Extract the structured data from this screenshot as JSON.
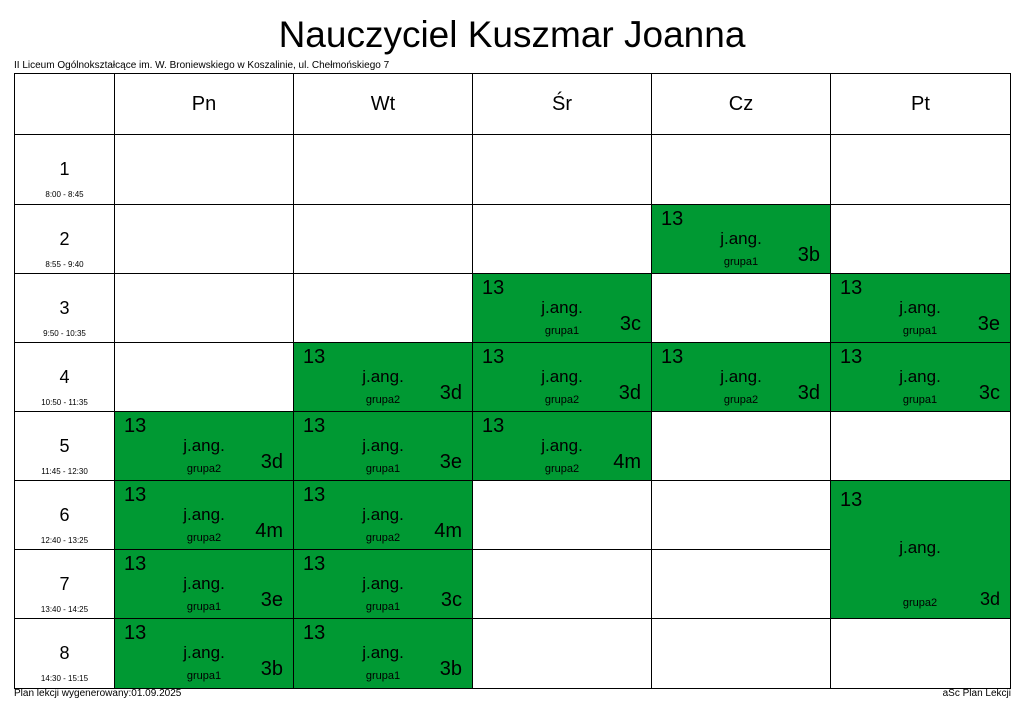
{
  "title": "Nauczyciel Kuszmar Joanna",
  "subtitle": "II Liceum Ogólnokształcące im. W. Broniewskiego w Koszalinie, ul. Chełmońskiego 7",
  "days": [
    "Pn",
    "Wt",
    "Śr",
    "Cz",
    "Pt"
  ],
  "rows": [
    {
      "number": "1",
      "time": "8:00 - 8:45",
      "cells": [
        null,
        null,
        null,
        null,
        null
      ]
    },
    {
      "number": "2",
      "time": "8:55 - 9:40",
      "cells": [
        null,
        null,
        null,
        {
          "room": "13",
          "subject": "j.ang.",
          "group": "grupa1",
          "class": "3b"
        },
        null
      ]
    },
    {
      "number": "3",
      "time": "9:50 - 10:35",
      "cells": [
        null,
        null,
        {
          "room": "13",
          "subject": "j.ang.",
          "group": "grupa1",
          "class": "3c"
        },
        null,
        {
          "room": "13",
          "subject": "j.ang.",
          "group": "grupa1",
          "class": "3e"
        }
      ]
    },
    {
      "number": "4",
      "time": "10:50 - 11:35",
      "cells": [
        null,
        {
          "room": "13",
          "subject": "j.ang.",
          "group": "grupa2",
          "class": "3d"
        },
        {
          "room": "13",
          "subject": "j.ang.",
          "group": "grupa2",
          "class": "3d"
        },
        {
          "room": "13",
          "subject": "j.ang.",
          "group": "grupa2",
          "class": "3d"
        },
        {
          "room": "13",
          "subject": "j.ang.",
          "group": "grupa1",
          "class": "3c"
        }
      ]
    },
    {
      "number": "5",
      "time": "11:45 - 12:30",
      "cells": [
        {
          "room": "13",
          "subject": "j.ang.",
          "group": "grupa2",
          "class": "3d"
        },
        {
          "room": "13",
          "subject": "j.ang.",
          "group": "grupa1",
          "class": "3e"
        },
        {
          "room": "13",
          "subject": "j.ang.",
          "group": "grupa2",
          "class": "4m"
        },
        null,
        null
      ]
    },
    {
      "number": "6",
      "time": "12:40 - 13:25",
      "cells": [
        {
          "room": "13",
          "subject": "j.ang.",
          "group": "grupa2",
          "class": "4m"
        },
        {
          "room": "13",
          "subject": "j.ang.",
          "group": "grupa2",
          "class": "4m"
        },
        null,
        null,
        {
          "room": "13",
          "subject": "j.ang.",
          "group": "grupa2",
          "class": "3d"
        }
      ]
    },
    {
      "number": "7",
      "time": "13:40 - 14:25",
      "cells": [
        {
          "room": "13",
          "subject": "j.ang.",
          "group": "grupa1",
          "class": "3e"
        },
        {
          "room": "13",
          "subject": "j.ang.",
          "group": "grupa1",
          "class": "3c"
        },
        null,
        null,
        null
      ]
    },
    {
      "number": "8",
      "time": "14:30 - 15:15",
      "cells": [
        {
          "room": "13",
          "subject": "j.ang.",
          "group": "grupa1",
          "class": "3b"
        },
        {
          "room": "13",
          "subject": "j.ang.",
          "group": "grupa1",
          "class": "3b"
        },
        null,
        null,
        null
      ]
    }
  ],
  "footer": {
    "left": "Plan lekcji wygenerowany:01.09.2025",
    "right": "aSc Plan Lekcji"
  }
}
